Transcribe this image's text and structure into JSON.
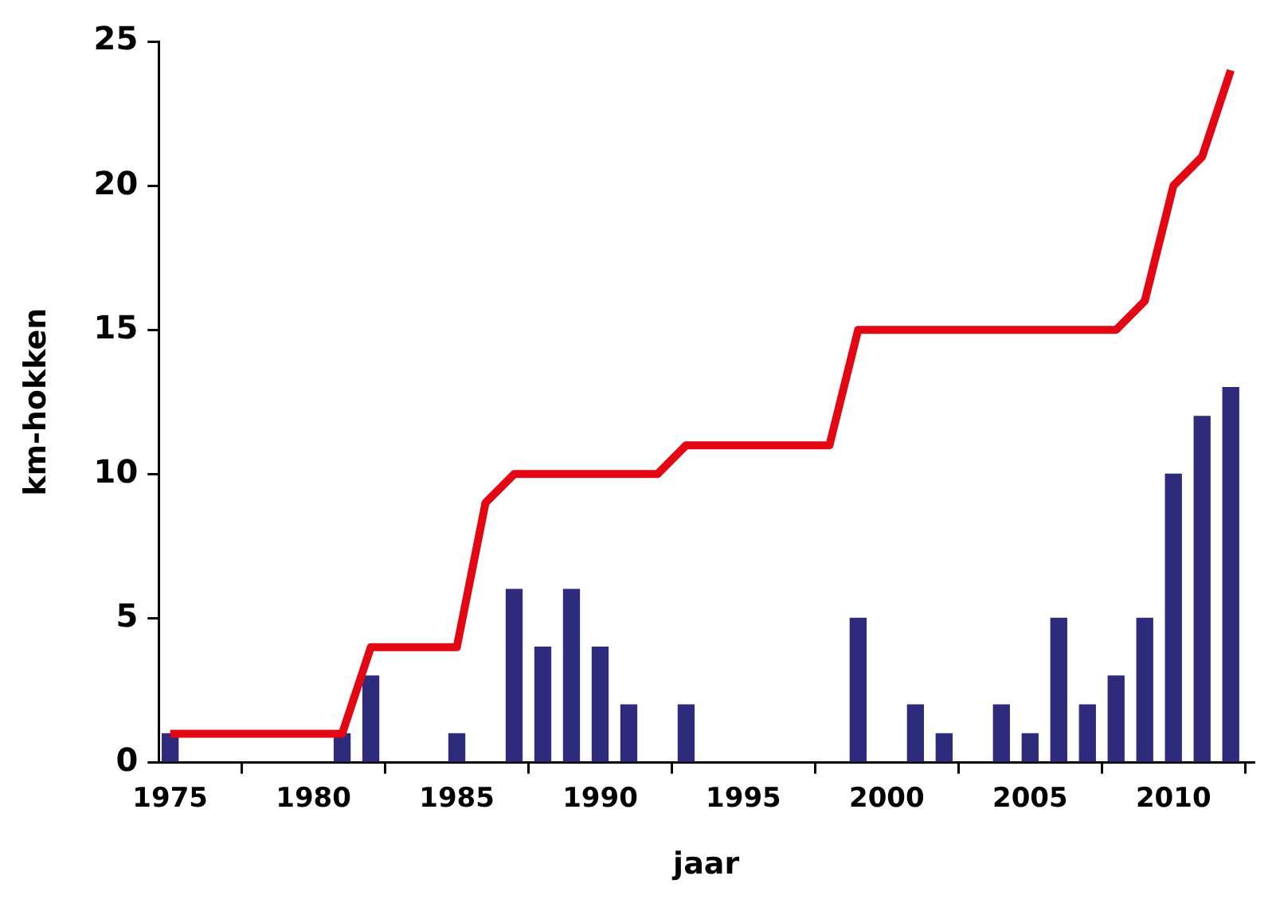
{
  "chart_data": {
    "type": "bar",
    "xlabel": "jaar",
    "ylabel": "km-hokken",
    "xlim": [
      1974.6,
      2012.8
    ],
    "xticks": [
      1975,
      1980,
      1985,
      1990,
      1995,
      2000,
      2005,
      2010
    ],
    "ylim": [
      0,
      25
    ],
    "yticks": [
      0,
      5,
      10,
      15,
      20,
      25
    ],
    "series": [
      {
        "color": "#2e2a7c",
        "x": [
          1975,
          1981,
          1982,
          1985,
          1987,
          1988,
          1989,
          1990,
          1991,
          1993,
          1999,
          2001,
          2002,
          2004,
          2005,
          2006,
          2007,
          2008,
          2009,
          2010,
          2011,
          2012
        ],
        "values": [
          1,
          1,
          3,
          1,
          6,
          4,
          6,
          4,
          2,
          2,
          5,
          2,
          1,
          2,
          1,
          5,
          2,
          3,
          5,
          10,
          12,
          13
        ]
      },
      {
        "type": "line",
        "color": "#e30613",
        "x": [
          1975,
          1981,
          1982,
          1985,
          1986,
          1987,
          1992,
          1993,
          1998,
          1999,
          2008,
          2009,
          2010,
          2011,
          2012
        ],
        "values": [
          1,
          1,
          4,
          4,
          9,
          10,
          10,
          11,
          11,
          15,
          15,
          16,
          20,
          21,
          24
        ]
      }
    ]
  }
}
